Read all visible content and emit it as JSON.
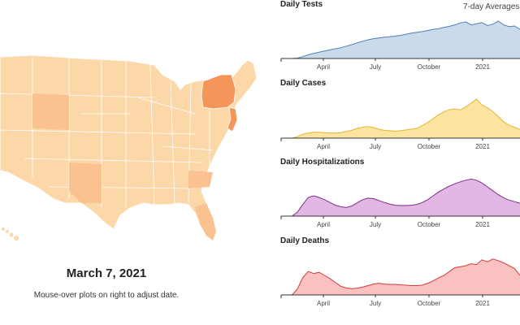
{
  "map": {
    "date_title": "March 7, 2021",
    "hint": "Mouse-over plots on right to adjust date.",
    "colors": {
      "light": "#fcd7a8",
      "medium": "#f9b87a",
      "dark": "#f4955a",
      "border": "#ffffff"
    }
  },
  "charts_header": {
    "averages_label": "7-day Averages"
  },
  "x_tick_labels": [
    "April",
    "July",
    "October",
    "2021"
  ],
  "charts": [
    {
      "key": "tests",
      "title": "Daily Tests",
      "stroke": "#4f7fb4",
      "fill": "#c9dbeb",
      "relative_values": [
        0,
        0,
        0,
        0.01,
        0.05,
        0.1,
        0.14,
        0.17,
        0.2,
        0.23,
        0.26,
        0.29,
        0.33,
        0.37,
        0.42,
        0.46,
        0.5,
        0.53,
        0.55,
        0.57,
        0.58,
        0.6,
        0.62,
        0.65,
        0.68,
        0.7,
        0.72,
        0.75,
        0.78,
        0.8,
        0.83,
        0.86,
        0.9,
        0.95,
        0.98,
        0.9,
        0.93,
        0.96,
        0.88,
        0.92,
        1.0,
        0.9,
        0.85,
        0.87,
        0.78
      ]
    },
    {
      "key": "cases",
      "title": "Daily Cases",
      "stroke": "#e8b530",
      "fill": "#fbe3a0",
      "relative_values": [
        0,
        0,
        0,
        0.04,
        0.1,
        0.13,
        0.15,
        0.15,
        0.14,
        0.13,
        0.13,
        0.14,
        0.17,
        0.2,
        0.25,
        0.28,
        0.3,
        0.27,
        0.23,
        0.2,
        0.19,
        0.18,
        0.19,
        0.21,
        0.23,
        0.25,
        0.32,
        0.4,
        0.5,
        0.6,
        0.68,
        0.73,
        0.75,
        0.72,
        0.8,
        0.9,
        1.0,
        0.85,
        0.78,
        0.68,
        0.55,
        0.42,
        0.33,
        0.28,
        0.22
      ]
    },
    {
      "key": "hospitalizations",
      "title": "Daily Hospitalizations",
      "stroke": "#7b2f8a",
      "fill": "#e2b7e3",
      "relative_values": [
        0,
        0,
        0,
        0.1,
        0.3,
        0.48,
        0.52,
        0.48,
        0.42,
        0.35,
        0.28,
        0.24,
        0.22,
        0.26,
        0.34,
        0.42,
        0.46,
        0.45,
        0.4,
        0.35,
        0.31,
        0.28,
        0.27,
        0.27,
        0.28,
        0.3,
        0.35,
        0.42,
        0.52,
        0.62,
        0.7,
        0.77,
        0.83,
        0.88,
        0.92,
        0.95,
        0.92,
        0.85,
        0.75,
        0.65,
        0.55,
        0.47,
        0.41,
        0.37,
        0.33
      ]
    },
    {
      "key": "deaths",
      "title": "Daily Deaths",
      "stroke": "#d43b3b",
      "fill": "#fbc0c0",
      "relative_values": [
        0,
        0,
        0,
        0.15,
        0.45,
        0.6,
        0.55,
        0.58,
        0.5,
        0.42,
        0.32,
        0.22,
        0.18,
        0.16,
        0.17,
        0.2,
        0.24,
        0.28,
        0.3,
        0.28,
        0.27,
        0.27,
        0.26,
        0.25,
        0.24,
        0.24,
        0.25,
        0.3,
        0.36,
        0.44,
        0.5,
        0.6,
        0.7,
        0.72,
        0.75,
        0.8,
        0.78,
        0.9,
        0.85,
        0.92,
        0.88,
        0.82,
        0.75,
        0.68,
        0.5
      ]
    }
  ]
}
